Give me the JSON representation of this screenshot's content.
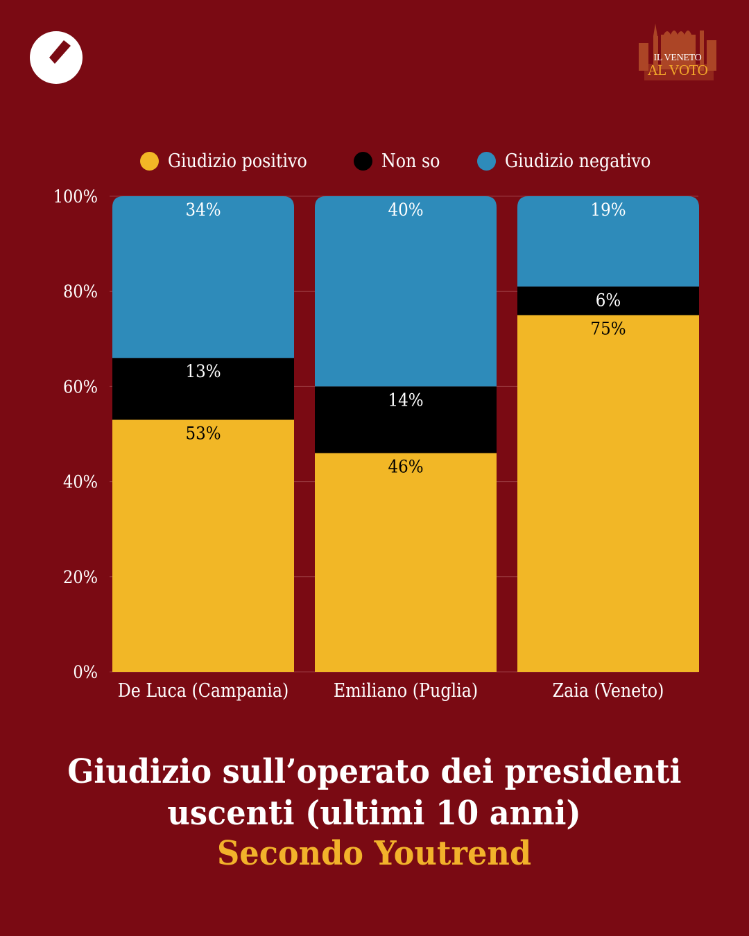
{
  "branding": {
    "left_logo_icon": "youtrend-circle-logo",
    "right_logo_line1": "IL VENETO",
    "right_logo_line2": "AL VOTO"
  },
  "colors": {
    "background": "#7A0A13",
    "positive": "#F2B726",
    "unknown": "#000000",
    "negative": "#2E8BBA",
    "gridline": "#9A3A40",
    "title_accent": "#F2B22B"
  },
  "legend": [
    {
      "label": "Giudizio positivo",
      "color": "#F2B726"
    },
    {
      "label": "Non so",
      "color": "#000000"
    },
    {
      "label": "Giudizio negativo",
      "color": "#2E8BBA"
    }
  ],
  "chart_data": {
    "type": "bar",
    "stacked": true,
    "categories": [
      "De Luca (Campania)",
      "Emiliano (Puglia)",
      "Zaia (Veneto)"
    ],
    "series": [
      {
        "name": "Giudizio positivo",
        "values": [
          53,
          46,
          75
        ],
        "color": "#F2B726",
        "label_color": "#000000"
      },
      {
        "name": "Non so",
        "values": [
          13,
          14,
          6
        ],
        "color": "#000000",
        "label_color": "#FFFFFF"
      },
      {
        "name": "Giudizio negativo",
        "values": [
          34,
          40,
          19
        ],
        "color": "#2E8BBA",
        "label_color": "#FFFFFF"
      }
    ],
    "value_suffix": "%",
    "ylim": [
      0,
      100
    ],
    "yticks": [
      0,
      20,
      40,
      60,
      80,
      100
    ],
    "ytick_labels": [
      "0%",
      "20%",
      "40%",
      "60%",
      "80%",
      "100%"
    ],
    "grid": true,
    "legend_position": "top",
    "xlabel": "",
    "ylabel": "",
    "title": "Giudizio sull’operato dei presidenti uscenti (ultimi 10 anni)",
    "subtitle": "Secondo Youtrend"
  },
  "title": {
    "line1": "Giudizio sull’operato dei presidenti",
    "line2": "uscenti (ultimi 10 anni)",
    "line3": "Secondo Youtrend"
  }
}
